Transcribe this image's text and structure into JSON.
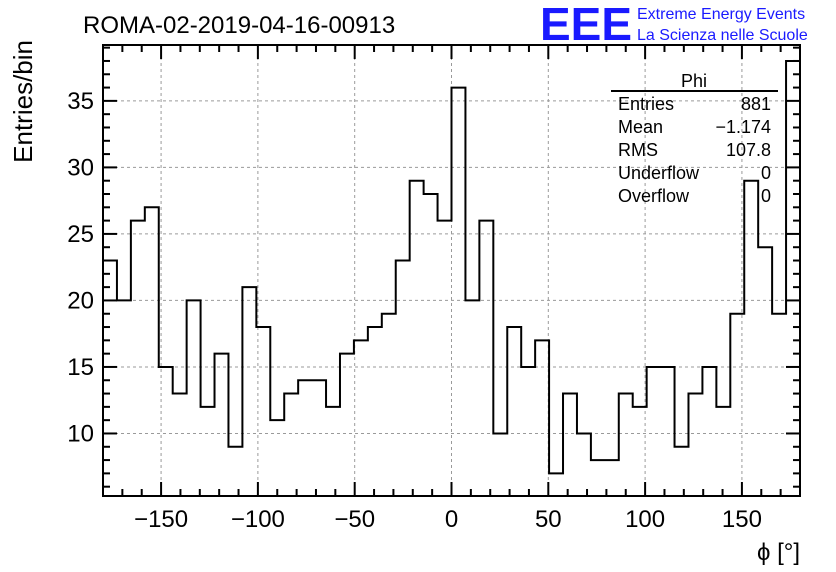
{
  "header": {
    "run_id": "ROMA-02-2019-04-16-00913",
    "logo_text": "EEE",
    "logo_line1": "Extreme Energy Events",
    "logo_line2": "La Scienza nelle Scuole"
  },
  "colors": {
    "logo": "#1a1aff",
    "histogram": "#000000",
    "grid": "#9a9a9a"
  },
  "stats": {
    "title": "Phi",
    "rows": [
      {
        "label": "Entries",
        "value": "881"
      },
      {
        "label": "Mean",
        "value": "−1.174"
      },
      {
        "label": "RMS",
        "value": "107.8"
      },
      {
        "label": "Underflow",
        "value": "0"
      },
      {
        "label": "Overflow",
        "value": "0"
      }
    ]
  },
  "chart_data": {
    "type": "histogram",
    "xlabel": "ϕ [°]",
    "ylabel": "Entries/bin",
    "xlim": [
      -180,
      180
    ],
    "ylim": [
      5.3,
      39.2
    ],
    "grid": true,
    "x_ticks": [
      -150,
      -100,
      -50,
      0,
      50,
      100,
      150
    ],
    "y_ticks": [
      10,
      15,
      20,
      25,
      30,
      35
    ],
    "bin_width": 7.2,
    "values": [
      23,
      20,
      26,
      27,
      15,
      13,
      20,
      12,
      16,
      9,
      21,
      18,
      11,
      13,
      14,
      14,
      12,
      16,
      17,
      18,
      19,
      23,
      29,
      28,
      26,
      36,
      20,
      26,
      10,
      18,
      15,
      17,
      7,
      13,
      10,
      8,
      8,
      13,
      12,
      15,
      15,
      9,
      13,
      15,
      12,
      19,
      29,
      24,
      19,
      38
    ]
  }
}
